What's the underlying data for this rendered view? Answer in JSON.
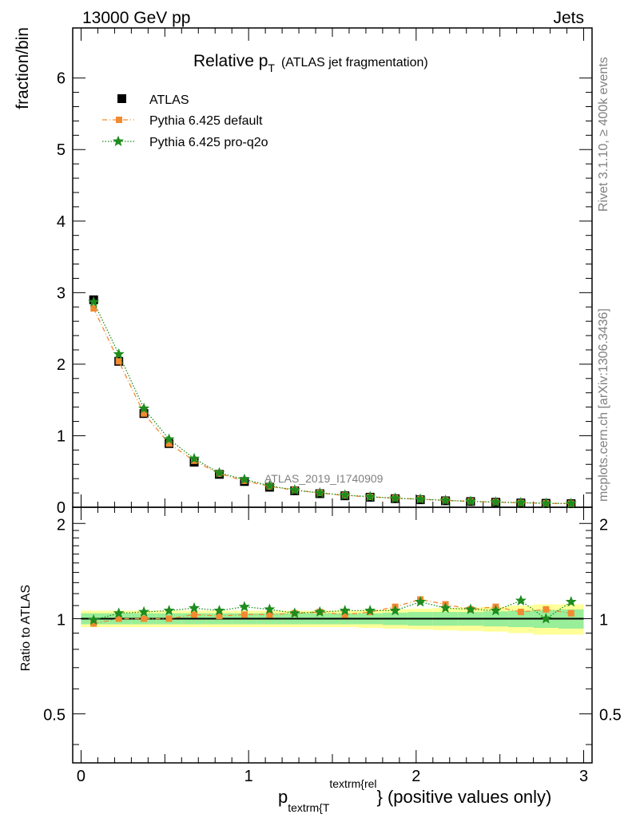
{
  "header": {
    "left": "13000 GeV pp",
    "right": "Jets"
  },
  "side_texts": {
    "rivet": "Rivet 3.1.10, ≥ 400k events",
    "mcplots": "mcplots.cern.ch [arXiv:1306.3436]"
  },
  "chart_data": [
    {
      "type": "scatter",
      "title_main": "Relative p",
      "title_sub": "T",
      "title_note": "(ATLAS jet fragmentation)",
      "watermark": "ATLAS_2019_I1740909",
      "ylabel": "fraction/bin",
      "xlim": [
        -0.05,
        3.05
      ],
      "ylim": [
        0,
        6.7
      ],
      "yticks": [
        0,
        1,
        2,
        3,
        4,
        5,
        6
      ],
      "yticklabels": [
        "0",
        "1",
        "2",
        "3",
        "4",
        "5",
        "6"
      ],
      "legend_position": "top-left",
      "x": [
        0.075,
        0.225,
        0.375,
        0.525,
        0.675,
        0.825,
        0.975,
        1.125,
        1.275,
        1.425,
        1.575,
        1.725,
        1.875,
        2.025,
        2.175,
        2.325,
        2.475,
        2.625,
        2.775,
        2.925
      ],
      "series": [
        {
          "name": "ATLAS",
          "color": "#000000",
          "marker": "square",
          "line": "none",
          "values": [
            2.9,
            2.04,
            1.31,
            0.89,
            0.63,
            0.46,
            0.36,
            0.28,
            0.23,
            0.19,
            0.16,
            0.14,
            0.12,
            0.105,
            0.09,
            0.08,
            0.07,
            0.06,
            0.055,
            0.05
          ]
        },
        {
          "name": "Pythia 6.425 default",
          "color": "#f28a30",
          "marker": "square-small",
          "line": "dashdot",
          "values": [
            2.78,
            2.04,
            1.31,
            0.89,
            0.65,
            0.47,
            0.37,
            0.29,
            0.24,
            0.2,
            0.165,
            0.145,
            0.127,
            0.113,
            0.096,
            0.083,
            0.072,
            0.062,
            0.056,
            0.051
          ]
        },
        {
          "name": "Pythia 6.425 pro-q2o",
          "color": "#1e8c1e",
          "marker": "star",
          "line": "dotted",
          "values": [
            2.87,
            2.14,
            1.38,
            0.95,
            0.68,
            0.48,
            0.39,
            0.3,
            0.24,
            0.2,
            0.17,
            0.147,
            0.126,
            0.113,
            0.096,
            0.083,
            0.072,
            0.065,
            0.055,
            0.053
          ]
        }
      ]
    },
    {
      "type": "scatter",
      "ylabel": "Ratio to ATLAS",
      "xlabel_main": "p",
      "xlabel_sub": "textrm{T",
      "xlabel_sup": "textrm{rel",
      "xlabel_tail": "} (positive values only)",
      "xlim": [
        -0.05,
        3.05
      ],
      "ylim": [
        0.35,
        2.25
      ],
      "xticks": [
        0,
        1,
        2,
        3
      ],
      "xticklabels": [
        "0",
        "1",
        "2",
        "3"
      ],
      "yticks": [
        0.5,
        1,
        2
      ],
      "yticklabels": [
        "0.5",
        "1",
        "2"
      ],
      "x": [
        0.075,
        0.225,
        0.375,
        0.525,
        0.675,
        0.825,
        0.975,
        1.125,
        1.275,
        1.425,
        1.575,
        1.725,
        1.875,
        2.025,
        2.175,
        2.325,
        2.475,
        2.625,
        2.775,
        2.925
      ],
      "band_green": [
        0.04,
        0.04,
        0.04,
        0.04,
        0.04,
        0.04,
        0.04,
        0.04,
        0.04,
        0.04,
        0.04,
        0.04,
        0.045,
        0.05,
        0.05,
        0.05,
        0.055,
        0.06,
        0.065,
        0.07
      ],
      "band_yellow": [
        0.06,
        0.06,
        0.06,
        0.06,
        0.06,
        0.06,
        0.06,
        0.06,
        0.06,
        0.06,
        0.06,
        0.065,
        0.07,
        0.075,
        0.08,
        0.085,
        0.09,
        0.1,
        0.11,
        0.11
      ],
      "series": [
        {
          "name": "Pythia 6.425 default",
          "color": "#f28a30",
          "values": [
            0.965,
            1.0,
            1.0,
            1.0,
            1.03,
            1.02,
            1.03,
            1.03,
            1.04,
            1.05,
            1.03,
            1.05,
            1.09,
            1.15,
            1.11,
            1.07,
            1.09,
            1.05,
            1.07,
            1.04
          ]
        },
        {
          "name": "Pythia 6.425 pro-q2o",
          "color": "#1e8c1e",
          "values": [
            0.99,
            1.04,
            1.05,
            1.06,
            1.08,
            1.06,
            1.09,
            1.07,
            1.04,
            1.05,
            1.06,
            1.06,
            1.06,
            1.13,
            1.08,
            1.07,
            1.06,
            1.14,
            1.0,
            1.13
          ]
        }
      ]
    }
  ]
}
